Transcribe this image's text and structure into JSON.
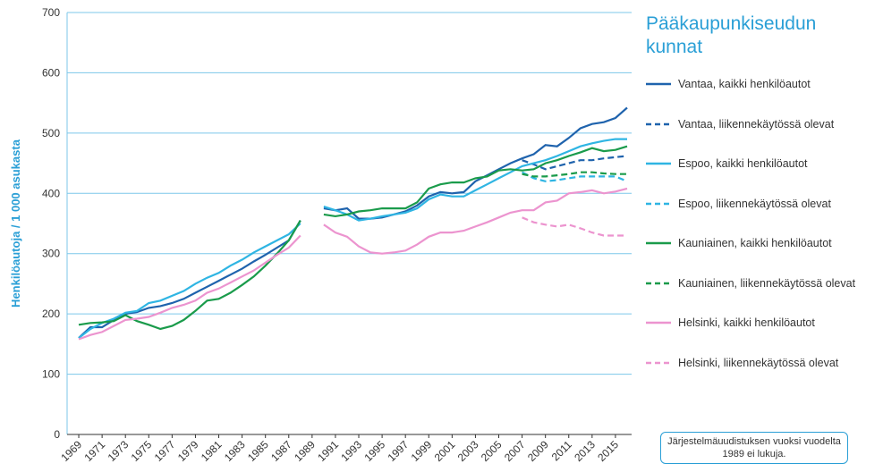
{
  "chart_data": {
    "type": "line",
    "title": "Pääkaupunkiseudun kunnat",
    "y_label": "Henkilöautoja / 1 000 asukasta",
    "note": "Järjestelmäuudistuksen vuoksi vuodelta 1989 ei lukuja.",
    "x": [
      1969,
      1970,
      1971,
      1972,
      1973,
      1974,
      1975,
      1976,
      1977,
      1978,
      1979,
      1980,
      1981,
      1982,
      1983,
      1984,
      1985,
      1986,
      1987,
      1988,
      1989,
      1990,
      1991,
      1992,
      1993,
      1994,
      1995,
      1996,
      1997,
      1998,
      1999,
      2000,
      2001,
      2002,
      2003,
      2004,
      2005,
      2006,
      2007,
      2008,
      2009,
      2010,
      2011,
      2012,
      2013,
      2014,
      2015,
      2016
    ],
    "xlim": [
      1968,
      2017
    ],
    "xticks": [
      1969,
      1971,
      1973,
      1975,
      1977,
      1979,
      1981,
      1983,
      1985,
      1987,
      1989,
      1991,
      1993,
      1995,
      1997,
      1999,
      2001,
      2003,
      2005,
      2007,
      2009,
      2011,
      2013,
      2015
    ],
    "ylim": [
      0,
      700
    ],
    "yticks": [
      0,
      100,
      200,
      300,
      400,
      500,
      600,
      700
    ],
    "grid": true,
    "series": [
      {
        "name": "Vantaa, kaikki henkilöautot",
        "color": "#1f63ad",
        "dashed": false,
        "values": [
          160,
          178,
          178,
          190,
          200,
          203,
          210,
          213,
          218,
          225,
          235,
          245,
          255,
          265,
          275,
          287,
          298,
          310,
          322,
          355,
          null,
          375,
          372,
          375,
          358,
          358,
          360,
          365,
          370,
          380,
          395,
          402,
          400,
          402,
          420,
          430,
          440,
          450,
          458,
          465,
          480,
          478,
          492,
          508,
          515,
          518,
          525,
          542
        ]
      },
      {
        "name": "Vantaa, liikennekäytössä olevat",
        "color": "#1f63ad",
        "dashed": true,
        "values": [
          null,
          null,
          null,
          null,
          null,
          null,
          null,
          null,
          null,
          null,
          null,
          null,
          null,
          null,
          null,
          null,
          null,
          null,
          null,
          null,
          null,
          null,
          null,
          null,
          null,
          null,
          null,
          null,
          null,
          null,
          null,
          null,
          null,
          null,
          null,
          null,
          null,
          null,
          455,
          448,
          440,
          445,
          450,
          455,
          455,
          458,
          460,
          462
        ]
      },
      {
        "name": "Espoo, kaikki henkilöautot",
        "color": "#2fb5e3",
        "dashed": false,
        "values": [
          160,
          175,
          185,
          192,
          202,
          205,
          218,
          222,
          230,
          238,
          250,
          260,
          268,
          280,
          290,
          302,
          312,
          322,
          332,
          350,
          null,
          378,
          372,
          365,
          355,
          358,
          362,
          365,
          368,
          375,
          390,
          398,
          395,
          395,
          405,
          415,
          425,
          435,
          445,
          450,
          455,
          462,
          470,
          478,
          483,
          487,
          490,
          490
        ]
      },
      {
        "name": "Espoo, liikennekäytössä olevat",
        "color": "#2fb5e3",
        "dashed": true,
        "values": [
          null,
          null,
          null,
          null,
          null,
          null,
          null,
          null,
          null,
          null,
          null,
          null,
          null,
          null,
          null,
          null,
          null,
          null,
          null,
          null,
          null,
          null,
          null,
          null,
          null,
          null,
          null,
          null,
          null,
          null,
          null,
          null,
          null,
          null,
          null,
          null,
          null,
          null,
          435,
          425,
          420,
          422,
          425,
          428,
          428,
          428,
          428,
          420
        ]
      },
      {
        "name": "Kauniainen, kaikki henkilöautot",
        "color": "#1a9b4b",
        "dashed": false,
        "values": [
          182,
          185,
          186,
          188,
          198,
          188,
          182,
          175,
          180,
          190,
          205,
          222,
          225,
          235,
          248,
          262,
          280,
          300,
          322,
          355,
          null,
          365,
          362,
          365,
          370,
          372,
          375,
          375,
          375,
          385,
          408,
          415,
          418,
          418,
          425,
          428,
          438,
          440,
          438,
          440,
          450,
          455,
          462,
          468,
          475,
          470,
          472,
          478
        ]
      },
      {
        "name": "Kauniainen, liikennekäytössä olevat",
        "color": "#1a9b4b",
        "dashed": true,
        "values": [
          null,
          null,
          null,
          null,
          null,
          null,
          null,
          null,
          null,
          null,
          null,
          null,
          null,
          null,
          null,
          null,
          null,
          null,
          null,
          null,
          null,
          null,
          null,
          null,
          null,
          null,
          null,
          null,
          null,
          null,
          null,
          null,
          null,
          null,
          null,
          null,
          null,
          null,
          432,
          428,
          428,
          430,
          432,
          435,
          435,
          433,
          432,
          432
        ]
      },
      {
        "name": "Helsinki, kaikki henkilöautot",
        "color": "#ec94cf",
        "dashed": false,
        "values": [
          158,
          165,
          170,
          180,
          190,
          192,
          195,
          202,
          210,
          215,
          222,
          235,
          242,
          252,
          262,
          272,
          285,
          298,
          310,
          330,
          null,
          348,
          335,
          328,
          312,
          302,
          300,
          302,
          305,
          315,
          328,
          335,
          335,
          338,
          345,
          352,
          360,
          368,
          372,
          372,
          385,
          388,
          400,
          402,
          405,
          400,
          403,
          408
        ]
      },
      {
        "name": "Helsinki, liikennekäytössä olevat",
        "color": "#ec94cf",
        "dashed": true,
        "values": [
          null,
          null,
          null,
          null,
          null,
          null,
          null,
          null,
          null,
          null,
          null,
          null,
          null,
          null,
          null,
          null,
          null,
          null,
          null,
          null,
          null,
          null,
          null,
          null,
          null,
          null,
          null,
          null,
          null,
          null,
          null,
          null,
          null,
          null,
          null,
          null,
          null,
          null,
          360,
          352,
          348,
          345,
          348,
          342,
          335,
          330,
          330,
          330
        ]
      }
    ]
  }
}
